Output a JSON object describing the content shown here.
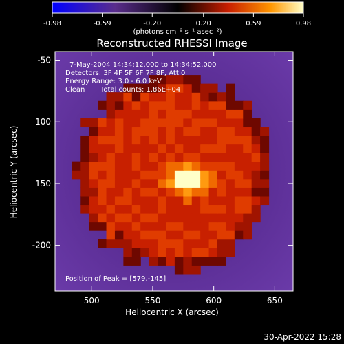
{
  "chart_data": {
    "type": "heatmap",
    "title": "Reconstructed RHESSI Image",
    "xlabel": "Heliocentric X (arcsec)",
    "ylabel": "Heliocentric Y (arcsec)",
    "xlim": [
      470,
      665
    ],
    "ylim": [
      -237,
      -43
    ],
    "x_ticks": [
      "500",
      "550",
      "600",
      "650"
    ],
    "y_ticks": [
      "-50",
      "-100",
      "-150",
      "-200"
    ],
    "colorbar": {
      "ticks": [
        "-0.98",
        "-0.59",
        "-0.20",
        "0.20",
        "0.59",
        "0.98"
      ],
      "range": [
        -0.98,
        0.98
      ],
      "unit_label": "(photons cm⁻² s⁻¹ asec⁻²)",
      "colors": [
        "#0000ff",
        "#5a2d8c",
        "#000000",
        "#c81e00",
        "#ff9600",
        "#ffffc8"
      ]
    },
    "annotations": {
      "time": "7-May-2004 14:34:12.000 to 14:34:52.000",
      "detectors": "Detectors: 3F 4F 5F 6F 7F 8F, Att 0",
      "energy": "Energy Range: 3.0 - 6.0 keV",
      "algorithm": "Clean",
      "counts": "Total counts: 1.86E+04",
      "peak": "Position of Peak = [579,-145]"
    },
    "peak": [
      579,
      -145
    ],
    "source_center": [
      567,
      -141
    ],
    "source_radius_arcsec": 80
  },
  "footer": {
    "date": "30-Apr-2022 15:28"
  }
}
